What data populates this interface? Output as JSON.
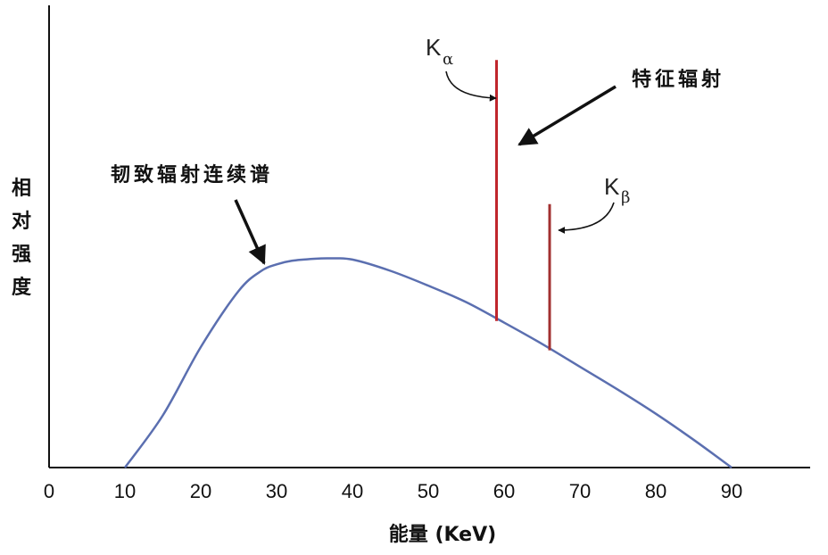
{
  "chart_data": {
    "type": "line",
    "xlabel": "能量 (KeV)",
    "ylabel": "相对强度",
    "xlim": [
      0,
      100
    ],
    "ylim": [
      0,
      100
    ],
    "x_ticks": [
      "0",
      "10",
      "20",
      "30",
      "40",
      "50",
      "60",
      "70",
      "80",
      "90"
    ],
    "grid": false,
    "series": [
      {
        "type": "line",
        "color": "#5b6fb0",
        "x": [
          10,
          15,
          20,
          25,
          28,
          30,
          32,
          35,
          37,
          40,
          45,
          50,
          55,
          60,
          65,
          70,
          75,
          80,
          85,
          90
        ],
        "y": [
          0,
          13,
          30,
          44,
          49,
          50.6,
          51.5,
          52,
          52.1,
          51.8,
          49,
          45.3,
          41.2,
          36.1,
          30.8,
          25.1,
          19.4,
          13.4,
          6.9,
          0
        ]
      }
    ],
    "peaks": [
      {
        "label": "K",
        "subscript": "α",
        "x": 59,
        "y_base": 36.5,
        "y_top": 101.5,
        "color": "#c0262c"
      },
      {
        "label": "K",
        "subscript": "β",
        "x": 66,
        "y_base": 29.2,
        "y_top": 65.6,
        "color": "#a23030"
      }
    ],
    "annotations": {
      "continuous": "韧致辐射连续谱",
      "characteristic": "特征辐射"
    }
  }
}
